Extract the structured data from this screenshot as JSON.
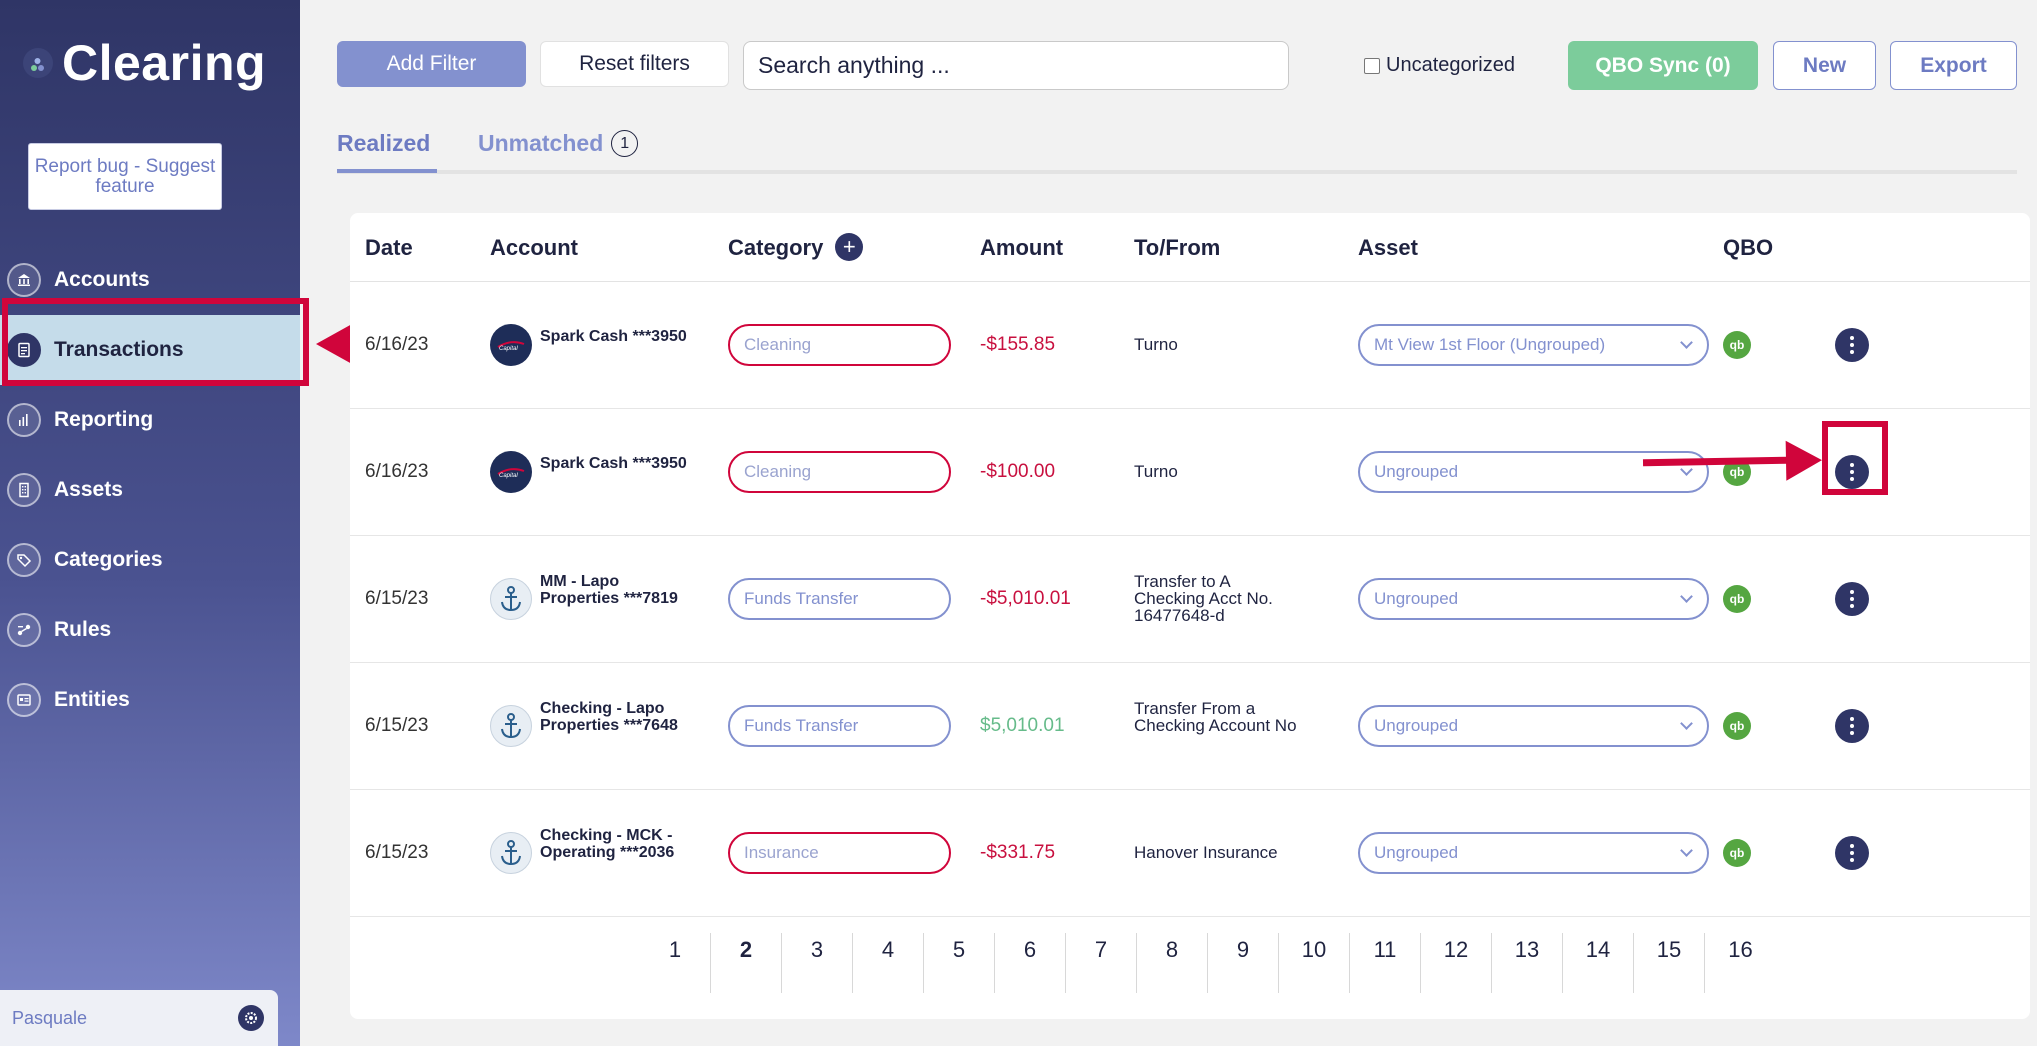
{
  "app": {
    "name": "Clearing",
    "report_bug_label": "Report bug - Suggest feature",
    "user_name": "Pasquale"
  },
  "sidebar": {
    "items": [
      {
        "label": "Accounts",
        "icon": "bank-icon"
      },
      {
        "label": "Transactions",
        "icon": "document-icon",
        "active": true
      },
      {
        "label": "Reporting",
        "icon": "bar-chart-icon"
      },
      {
        "label": "Assets",
        "icon": "building-icon"
      },
      {
        "label": "Categories",
        "icon": "tag-icon"
      },
      {
        "label": "Rules",
        "icon": "rules-icon"
      },
      {
        "label": "Entities",
        "icon": "entities-icon"
      }
    ]
  },
  "toolbar": {
    "add_filter": "Add Filter",
    "reset_filters": "Reset filters",
    "search_placeholder": "Search anything ...",
    "uncategorized_label": "Uncategorized",
    "qbo_sync": "QBO Sync (0)",
    "new_label": "New",
    "export_label": "Export"
  },
  "tabs": {
    "realized": "Realized",
    "unmatched": "Unmatched",
    "unmatched_count": "1"
  },
  "table": {
    "headers": {
      "date": "Date",
      "account": "Account",
      "category": "Category",
      "amount": "Amount",
      "tofrom": "To/From",
      "asset": "Asset",
      "qbo": "QBO"
    },
    "rows": [
      {
        "date": "6/16/23",
        "account": "Spark Cash ***3950",
        "account_logo": "capital-one",
        "category": "Cleaning",
        "category_status": "red",
        "amount": "-$155.85",
        "amount_sign": "neg",
        "tofrom": "Turno",
        "asset": "Mt View 1st Floor (Ungrouped)"
      },
      {
        "date": "6/16/23",
        "account": "Spark Cash ***3950",
        "account_logo": "capital-one",
        "category": "Cleaning",
        "category_status": "red",
        "amount": "-$100.00",
        "amount_sign": "neg",
        "tofrom": "Turno",
        "asset": "Ungrouped"
      },
      {
        "date": "6/15/23",
        "account": "MM - Lapo Properties ***7819",
        "account_logo": "anchor",
        "category": "Funds Transfer",
        "category_status": "blue",
        "amount": "-$5,010.01",
        "amount_sign": "neg",
        "tofrom": "Transfer to A Checking Acct No. 16477648-d",
        "asset": "Ungrouped"
      },
      {
        "date": "6/15/23",
        "account": "Checking - Lapo Properties ***7648",
        "account_logo": "anchor",
        "category": "Funds Transfer",
        "category_status": "blue",
        "amount": "$5,010.01",
        "amount_sign": "pos",
        "tofrom": "Transfer From a Checking Account No",
        "asset": "Ungrouped"
      },
      {
        "date": "6/15/23",
        "account": "Checking - MCK - Operating ***2036",
        "account_logo": "anchor",
        "category": "Insurance",
        "category_status": "red",
        "amount": "-$331.75",
        "amount_sign": "neg",
        "tofrom": "Hanover Insurance",
        "asset": "Ungrouped"
      }
    ],
    "qbo_badge": "qb"
  },
  "pagination": {
    "pages": [
      "1",
      "2",
      "3",
      "4",
      "5",
      "6",
      "7",
      "8",
      "9",
      "10",
      "11",
      "12",
      "13",
      "14",
      "15",
      "16"
    ],
    "current": "2"
  },
  "colors": {
    "accent": "#8391cf",
    "sidebar_dark": "#2f3566",
    "negative": "#c8103f",
    "positive": "#66bb8a",
    "qbo_green": "#55a641",
    "annotation_red": "#d0053b"
  }
}
